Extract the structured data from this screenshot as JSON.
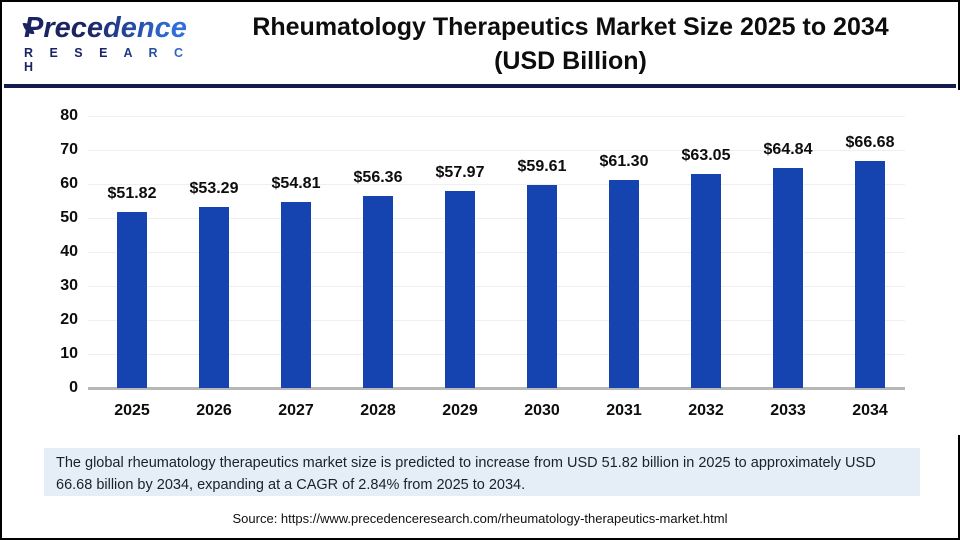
{
  "header": {
    "logo": {
      "brand": "Precedence",
      "sub": "R E S E A R C H"
    },
    "title": "Rheumatology Therapeutics Market Size 2025 to 2034",
    "subtitle": "(USD Billion)"
  },
  "chart_data": {
    "type": "bar",
    "title": "Rheumatology Therapeutics Market Size 2025 to 2034 (USD Billion)",
    "categories": [
      "2025",
      "2026",
      "2027",
      "2028",
      "2029",
      "2030",
      "2031",
      "2032",
      "2033",
      "2034"
    ],
    "values": [
      51.82,
      53.29,
      54.81,
      56.36,
      57.97,
      59.61,
      61.3,
      63.05,
      64.84,
      66.68
    ],
    "value_labels": [
      "$51.82",
      "$53.29",
      "$54.81",
      "$56.36",
      "$57.97",
      "$59.61",
      "$61.30",
      "$63.05",
      "$64.84",
      "$66.68"
    ],
    "xlabel": "",
    "ylabel": "",
    "unit": "USD Billion",
    "ylim": [
      0,
      80
    ],
    "yticks": [
      0,
      10,
      20,
      30,
      40,
      50,
      60,
      70,
      80
    ],
    "grid": true,
    "legend_position": "none",
    "bar_color": "#1543b0"
  },
  "footer": {
    "note": "The global rheumatology therapeutics market size is predicted to increase from USD 51.82 billion in 2025 to approximately USD 66.68 billion by 2034, expanding at a CAGR of 2.84% from 2025 to 2034.",
    "source": "Source: https://www.precedenceresearch.com/rheumatology-therapeutics-market.html"
  },
  "colors": {
    "bar": "#1543b0",
    "divider_navy": "#161b4e",
    "note_background": "#e5eef6",
    "logo_navy": "#1b2363",
    "logo_blue": "#2f6fd6"
  }
}
